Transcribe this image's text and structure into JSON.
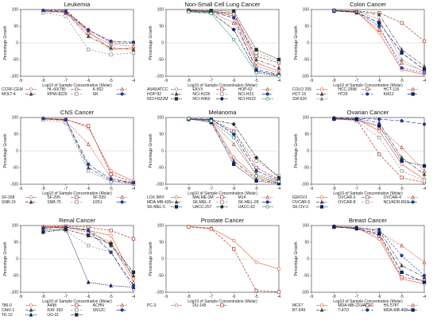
{
  "figure": {
    "y_axis_label": "Percentage Growth",
    "x_axis_label": "Log10 of Sample Concentration (Molar)"
  },
  "chart_data": [
    {
      "type": "line",
      "title": "Leukemia",
      "xlabel": "Log10 of Sample Concentration (Molar)",
      "ylabel": "Percentage Growth",
      "x": [
        -8,
        -7,
        -6,
        -5,
        -4
      ],
      "xlim": [
        -9,
        -4
      ],
      "ylim": [
        -100,
        100
      ],
      "xticks": [
        -9,
        -8,
        -7,
        -6,
        -5,
        -4
      ],
      "yticks": [
        100,
        50,
        0,
        -50,
        -100
      ],
      "grid": false,
      "legend_position": "bottom",
      "series": [
        {
          "name": "CCRF-CEM",
          "color": "#e8694b",
          "marker": "circle-open",
          "values": [
            95,
            93,
            35,
            -20,
            -15
          ]
        },
        {
          "name": "HL-60(TB)",
          "color": "#b03a2e",
          "marker": "circle-open",
          "values": [
            98,
            98,
            40,
            0,
            -2
          ]
        },
        {
          "name": "K-562",
          "color": "#c0392b",
          "marker": "triangle-open",
          "values": [
            93,
            90,
            30,
            -5,
            -10
          ]
        },
        {
          "name": "MOLT-4",
          "color": "#444444",
          "marker": "triangle",
          "values": [
            96,
            92,
            20,
            -15,
            -20
          ]
        },
        {
          "name": "RPMI-8226",
          "color": "#888888",
          "marker": "square-open",
          "values": [
            90,
            80,
            -20,
            -35,
            -30
          ]
        },
        {
          "name": "SR",
          "color": "#1f3b9b",
          "marker": "circle",
          "values": [
            97,
            95,
            38,
            5,
            2
          ]
        }
      ]
    },
    {
      "type": "line",
      "title": "Non-Small Cell Lung Cancer",
      "xlabel": "Log10 of Sample Concentration (Molar)",
      "ylabel": "Percentage Growth",
      "x": [
        -8,
        -7,
        -6,
        -5,
        -4
      ],
      "xlim": [
        -9,
        -4
      ],
      "ylim": [
        -100,
        100
      ],
      "xticks": [
        -9,
        -8,
        -7,
        -6,
        -5,
        -4
      ],
      "yticks": [
        100,
        50,
        0,
        -50,
        -100
      ],
      "grid": false,
      "legend_position": "bottom",
      "series": [
        {
          "name": "A549/ATCC",
          "color": "#e8694b",
          "marker": "circle-open",
          "values": [
            98,
            95,
            80,
            -60,
            -85
          ]
        },
        {
          "name": "EKVX",
          "color": "#b03a2e",
          "marker": "square-open",
          "values": [
            96,
            95,
            85,
            -40,
            -60
          ]
        },
        {
          "name": "HOP-62",
          "color": "#c0392b",
          "marker": "triangle-open",
          "values": [
            97,
            92,
            60,
            -70,
            -90
          ]
        },
        {
          "name": "HOP-92",
          "color": "#444444",
          "marker": "triangle",
          "values": [
            95,
            94,
            90,
            -50,
            -75
          ]
        },
        {
          "name": "NCI-H226",
          "color": "#888888",
          "marker": "square-open",
          "values": [
            99,
            96,
            88,
            -30,
            -55
          ]
        },
        {
          "name": "NCI-H23",
          "color": "#1f3b9b",
          "marker": "circle",
          "values": [
            97,
            93,
            75,
            -80,
            -95
          ]
        },
        {
          "name": "NCI-H322M",
          "color": "#2c2c2c",
          "marker": "square",
          "values": [
            96,
            97,
            95,
            -20,
            -50
          ]
        },
        {
          "name": "NCI-H460",
          "color": "#0b1f66",
          "marker": "diamond",
          "values": [
            94,
            90,
            40,
            -85,
            -98
          ]
        },
        {
          "name": "NCI-H522",
          "color": "#2e8b57",
          "marker": "circle-open",
          "values": [
            93,
            88,
            10,
            -90,
            -99
          ]
        }
      ]
    },
    {
      "type": "line",
      "title": "Colon Cancer",
      "xlabel": "Log10 of Sample Concentration (Molar)",
      "ylabel": "Percentage Growth",
      "x": [
        -8,
        -7,
        -6,
        -5,
        -4
      ],
      "xlim": [
        -9,
        -4
      ],
      "ylim": [
        -100,
        100
      ],
      "xticks": [
        -9,
        -8,
        -7,
        -6,
        -5,
        -4
      ],
      "yticks": [
        100,
        50,
        0,
        -50,
        -100
      ],
      "grid": false,
      "legend_position": "bottom",
      "series": [
        {
          "name": "COLO 205",
          "color": "#e8694b",
          "marker": "circle-open",
          "values": [
            97,
            95,
            30,
            -80,
            -95
          ]
        },
        {
          "name": "HCC-2998",
          "color": "#b03a2e",
          "marker": "square-open",
          "values": [
            98,
            96,
            90,
            60,
            5
          ]
        },
        {
          "name": "HCT-116",
          "color": "#c0392b",
          "marker": "triangle-open",
          "values": [
            96,
            90,
            40,
            -60,
            -85
          ]
        },
        {
          "name": "HCT-15",
          "color": "#444444",
          "marker": "triangle",
          "values": [
            95,
            94,
            85,
            -20,
            -70
          ]
        },
        {
          "name": "HT29",
          "color": "#1f3b9b",
          "marker": "circle",
          "values": [
            97,
            93,
            50,
            -75,
            -90
          ]
        },
        {
          "name": "KM12",
          "color": "#0b1f66",
          "marker": "square",
          "values": [
            96,
            92,
            60,
            -30,
            -80
          ]
        },
        {
          "name": "SW-620",
          "color": "#888888",
          "marker": "triangle",
          "values": [
            98,
            95,
            70,
            -50,
            -88
          ]
        }
      ]
    },
    {
      "type": "line",
      "title": "CNS Cancer",
      "xlabel": "Log10 of Sample Concentration (Molar)",
      "ylabel": "Percentage Growth",
      "x": [
        -8,
        -7,
        -6,
        -5,
        -4
      ],
      "xlim": [
        -9,
        -4
      ],
      "ylim": [
        -100,
        100
      ],
      "xticks": [
        -9,
        -8,
        -7,
        -6,
        -5,
        -4
      ],
      "yticks": [
        100,
        50,
        0,
        -50,
        -100
      ],
      "grid": false,
      "legend_position": "bottom",
      "series": [
        {
          "name": "SF-268",
          "color": "#e8694b",
          "marker": "circle-open",
          "values": [
            97,
            95,
            70,
            -60,
            -90
          ]
        },
        {
          "name": "SF-295",
          "color": "#b03a2e",
          "marker": "square-open",
          "values": [
            96,
            94,
            75,
            -70,
            -95
          ]
        },
        {
          "name": "SF-539",
          "color": "#c0392b",
          "marker": "triangle-open",
          "values": [
            98,
            90,
            20,
            -80,
            -98
          ]
        },
        {
          "name": "SNB-19",
          "color": "#444444",
          "marker": "triangle",
          "values": [
            95,
            92,
            -50,
            -90,
            -97
          ]
        },
        {
          "name": "SNB-75",
          "color": "#888888",
          "marker": "square-open",
          "values": [
            93,
            85,
            -60,
            -92,
            -99
          ]
        },
        {
          "name": "U251",
          "color": "#1f3b9b",
          "marker": "circle",
          "values": [
            97,
            93,
            -40,
            -85,
            -96
          ]
        }
      ]
    },
    {
      "type": "line",
      "title": "Melanoma",
      "xlabel": "Log10 of Sample Concentration (Molar)",
      "ylabel": "Percentage Growth",
      "x": [
        -8,
        -7,
        -6,
        -5,
        -4
      ],
      "xlim": [
        -9,
        -4
      ],
      "ylim": [
        -100,
        100
      ],
      "xticks": [
        -9,
        -8,
        -7,
        -6,
        -5,
        -4
      ],
      "yticks": [
        100,
        50,
        0,
        -50,
        -100
      ],
      "grid": false,
      "legend_position": "bottom",
      "series": [
        {
          "name": "LOX IMVI",
          "color": "#e8694b",
          "marker": "circle-open",
          "values": [
            97,
            92,
            -20,
            -80,
            -95
          ]
        },
        {
          "name": "MALME-3M",
          "color": "#b03a2e",
          "marker": "square-open",
          "values": [
            96,
            94,
            60,
            -50,
            -85
          ]
        },
        {
          "name": "M14",
          "color": "#c0392b",
          "marker": "triangle-open",
          "values": [
            95,
            90,
            20,
            -70,
            -90
          ]
        },
        {
          "name": "MDA-MB-435",
          "color": "#444444",
          "marker": "triangle",
          "values": [
            98,
            88,
            -30,
            -85,
            -97
          ]
        },
        {
          "name": "SK-MEL-2",
          "color": "#888888",
          "marker": "square-open",
          "values": [
            94,
            93,
            55,
            -30,
            -75
          ]
        },
        {
          "name": "SK-MEL-28",
          "color": "#1f3b9b",
          "marker": "circle",
          "values": [
            97,
            95,
            50,
            -60,
            -88
          ]
        },
        {
          "name": "SK-MEL-5",
          "color": "#0b1f66",
          "marker": "square",
          "values": [
            96,
            85,
            -40,
            -90,
            -98
          ]
        },
        {
          "name": "UACC-257",
          "color": "#2c2c2c",
          "marker": "diamond",
          "values": [
            95,
            94,
            80,
            -20,
            -80
          ]
        },
        {
          "name": "UACC-62",
          "color": "#2e8b57",
          "marker": "circle-open",
          "values": [
            97,
            90,
            40,
            -75,
            -92
          ]
        }
      ]
    },
    {
      "type": "line",
      "title": "Ovarian Cancer",
      "xlabel": "Log10 of Sample Concentration (Molar)",
      "ylabel": "Percentage Growth",
      "x": [
        -8,
        -7,
        -6,
        -5,
        -4
      ],
      "xlim": [
        -9,
        -4
      ],
      "ylim": [
        -100,
        100
      ],
      "xticks": [
        -9,
        -8,
        -7,
        -6,
        -5,
        -4
      ],
      "yticks": [
        100,
        50,
        0,
        -50,
        -100
      ],
      "grid": false,
      "legend_position": "bottom",
      "series": [
        {
          "name": "IGROV1",
          "color": "#e8694b",
          "marker": "circle-open",
          "values": [
            97,
            95,
            60,
            -40,
            -85
          ]
        },
        {
          "name": "OVCAR-3",
          "color": "#b03a2e",
          "marker": "square-open",
          "values": [
            96,
            93,
            -10,
            -80,
            -95
          ]
        },
        {
          "name": "OVCAR-4",
          "color": "#c0392b",
          "marker": "triangle-open",
          "values": [
            95,
            92,
            70,
            10,
            -60
          ]
        },
        {
          "name": "OVCAR-5",
          "color": "#444444",
          "marker": "triangle",
          "values": [
            98,
            96,
            85,
            -20,
            -70
          ]
        },
        {
          "name": "OVCAR-8",
          "color": "#888888",
          "marker": "square-open",
          "values": [
            97,
            90,
            40,
            -60,
            -90
          ]
        },
        {
          "name": "NCI/ADR-RES",
          "color": "#1f3b9b",
          "marker": "circle",
          "values": [
            99,
            97,
            95,
            90,
            80
          ]
        },
        {
          "name": "SK-OV-3",
          "color": "#0b1f66",
          "marker": "square",
          "values": [
            96,
            94,
            75,
            -30,
            -45
          ]
        }
      ]
    },
    {
      "type": "line",
      "title": "Renal Cancer",
      "xlabel": "Log10 of Sample Concentration (Molar)",
      "ylabel": "Percentage Growth",
      "x": [
        -8,
        -7,
        -6,
        -5,
        -4
      ],
      "xlim": [
        -9,
        -4
      ],
      "ylim": [
        -100,
        100
      ],
      "xticks": [
        -9,
        -8,
        -7,
        -6,
        -5,
        -4
      ],
      "yticks": [
        100,
        50,
        0,
        -50,
        -100
      ],
      "grid": false,
      "legend_position": "bottom",
      "series": [
        {
          "name": "786-0",
          "color": "#e8694b",
          "marker": "circle-open",
          "values": [
            97,
            95,
            85,
            70,
            -60
          ]
        },
        {
          "name": "A498",
          "color": "#b03a2e",
          "marker": "square-open",
          "values": [
            96,
            98,
            95,
            85,
            60
          ]
        },
        {
          "name": "ACHN",
          "color": "#c0392b",
          "marker": "triangle-open",
          "values": [
            95,
            92,
            80,
            50,
            -70
          ]
        },
        {
          "name": "CAKI-1",
          "color": "#444444",
          "marker": "triangle",
          "values": [
            93,
            94,
            88,
            40,
            -50
          ]
        },
        {
          "name": "RXF 393",
          "color": "#888888",
          "marker": "square-open",
          "values": [
            90,
            85,
            40,
            20,
            -90
          ]
        },
        {
          "name": "SN12C",
          "color": "#1f3b9b",
          "marker": "circle",
          "values": [
            92,
            95,
            85,
            20,
            -80
          ]
        },
        {
          "name": "TK-10",
          "color": "#0b1f66",
          "marker": "triangle",
          "values": [
            85,
            90,
            -70,
            -80,
            -85
          ]
        },
        {
          "name": "UO-31",
          "color": "#2c2c2c",
          "marker": "square",
          "values": [
            80,
            88,
            70,
            45,
            -40
          ]
        }
      ]
    },
    {
      "type": "line",
      "title": "Prostate Cancer",
      "xlabel": "Log10 of Sample Concentration (Molar)",
      "ylabel": "Percentage Growth",
      "x": [
        -8,
        -7,
        -6,
        -5,
        -4
      ],
      "xlim": [
        -9,
        -4
      ],
      "ylim": [
        -100,
        100
      ],
      "xticks": [
        -9,
        -8,
        -7,
        -6,
        -5,
        -4
      ],
      "yticks": [
        100,
        50,
        0,
        -50,
        -100
      ],
      "grid": false,
      "legend_position": "bottom",
      "series": [
        {
          "name": "PC-3",
          "color": "#e8694b",
          "marker": "circle-open",
          "values": [
            97,
            92,
            55,
            -10,
            -30
          ]
        },
        {
          "name": "DU-145",
          "color": "#b03a2e",
          "marker": "square-open",
          "values": [
            96,
            90,
            30,
            -95,
            -99
          ]
        }
      ]
    },
    {
      "type": "line",
      "title": "Breast Cancer",
      "xlabel": "Log10 of Sample Concentration (Molar)",
      "ylabel": "Percentage Growth",
      "x": [
        -8,
        -7,
        -6,
        -5,
        -4
      ],
      "xlim": [
        -9,
        -4
      ],
      "ylim": [
        -100,
        100
      ],
      "xticks": [
        -9,
        -8,
        -7,
        -6,
        -5,
        -4
      ],
      "yticks": [
        100,
        50,
        0,
        -50,
        -100
      ],
      "grid": false,
      "legend_position": "bottom",
      "series": [
        {
          "name": "MCF7",
          "color": "#e8694b",
          "marker": "circle-open",
          "values": [
            96,
            93,
            60,
            -60,
            -75
          ]
        },
        {
          "name": "MDA-MB-231/ATCC",
          "color": "#b03a2e",
          "marker": "square-open",
          "values": [
            97,
            90,
            70,
            -55,
            -65
          ]
        },
        {
          "name": "HS 578T",
          "color": "#c0392b",
          "marker": "triangle-open",
          "values": [
            98,
            95,
            80,
            40,
            -10
          ]
        },
        {
          "name": "BT-549",
          "color": "#444444",
          "marker": "triangle",
          "values": [
            95,
            92,
            85,
            -20,
            -55
          ]
        },
        {
          "name": "T-47D",
          "color": "#1f3b9b",
          "marker": "circle",
          "values": [
            97,
            94,
            88,
            10,
            -50
          ]
        },
        {
          "name": "MDA-MB-468",
          "color": "#0b1f66",
          "marker": "square",
          "values": [
            96,
            91,
            75,
            -40,
            -70
          ]
        }
      ]
    }
  ]
}
